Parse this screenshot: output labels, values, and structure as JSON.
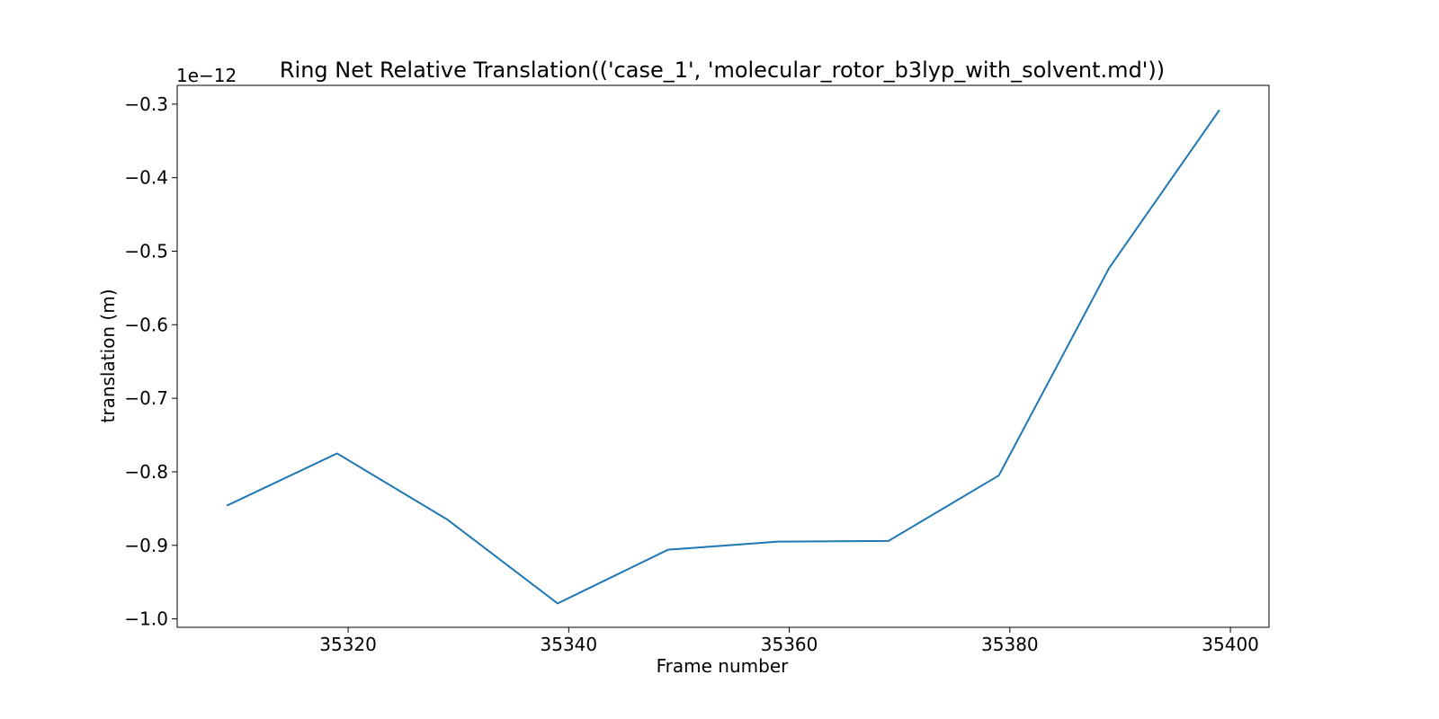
{
  "chart_data": {
    "type": "line",
    "title": "Ring Net Relative Translation(('case_1', 'molecular_rotor_b3lyp_with_solvent.md'))",
    "xlabel": "Frame number",
    "ylabel": "translation (m)",
    "y_offset_label": "1e−12",
    "xlim": [
      35304.5,
      35403.5
    ],
    "ylim": [
      -1.0115,
      -0.2745
    ],
    "x_ticks": [
      35320,
      35340,
      35360,
      35380,
      35400
    ],
    "x_tick_labels": [
      "35320",
      "35340",
      "35360",
      "35380",
      "35400"
    ],
    "y_ticks": [
      -0.3,
      -0.4,
      -0.5,
      -0.6,
      -0.7,
      -0.8,
      -0.9,
      -1.0
    ],
    "y_tick_labels": [
      "−0.3",
      "−0.4",
      "−0.5",
      "−0.6",
      "−0.7",
      "−0.8",
      "−0.9",
      "−1.0"
    ],
    "grid": false,
    "series": [
      {
        "color": "#1f77b4",
        "x": [
          35309,
          35319,
          35329,
          35339,
          35349,
          35359,
          35369,
          35379,
          35389,
          35399
        ],
        "y": [
          -0.846,
          -0.775,
          -0.865,
          -0.979,
          -0.906,
          -0.895,
          -0.894,
          -0.805,
          -0.523,
          -0.308
        ]
      }
    ]
  }
}
